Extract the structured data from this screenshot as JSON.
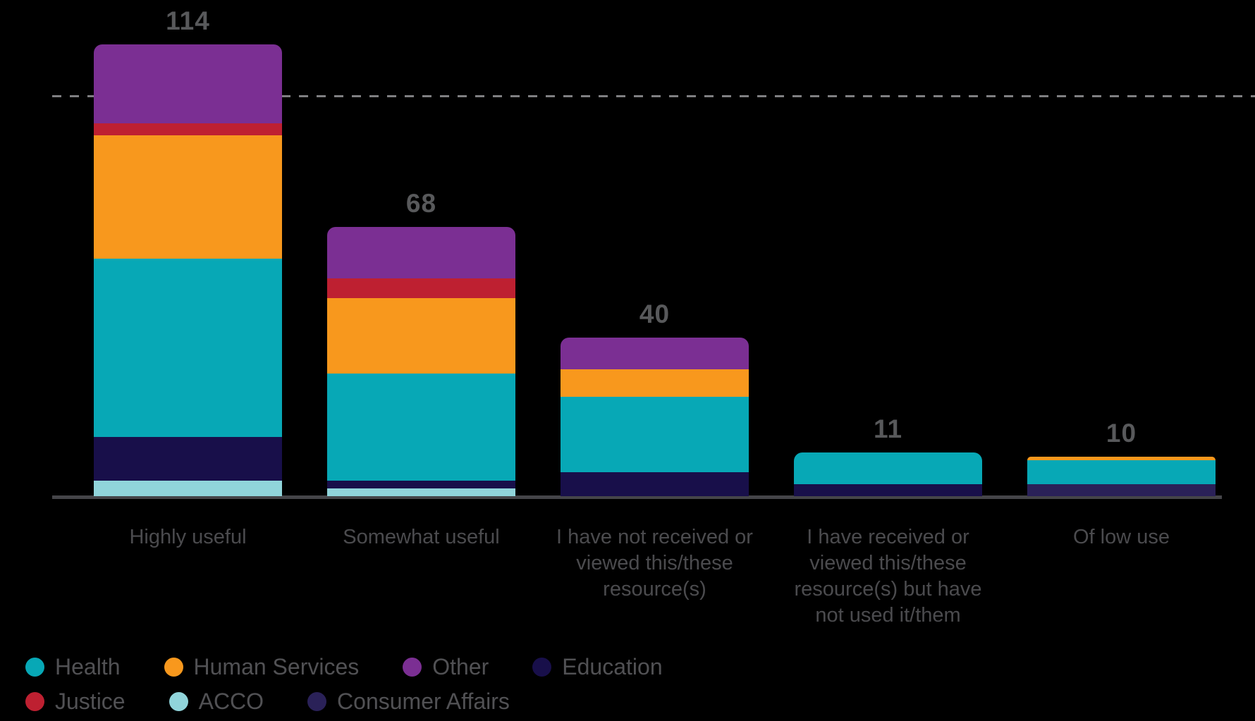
{
  "colors": {
    "background": "#000000",
    "value_label": "#58595B",
    "axis_label": "#4B4B4E",
    "legend_text": "#515154",
    "axis_line": "#454549",
    "dashed_line": "#7F7F82"
  },
  "chart_data": {
    "type": "bar",
    "stacked": true,
    "title": "",
    "xlabel": "",
    "ylabel": "",
    "grid": "off",
    "legend_position": "bottom-left",
    "categories": [
      {
        "label": "Highly useful",
        "lines": [
          "Highly useful"
        ]
      },
      {
        "label": "Somewhat useful",
        "lines": [
          "Somewhat useful"
        ]
      },
      {
        "label": "I have not received or viewed this/these resource(s)",
        "lines": [
          "I have not received or",
          "viewed this/these",
          "resource(s)"
        ]
      },
      {
        "label": "I have received or viewed this/these resource(s) but have not used it/them",
        "lines": [
          "I have received or",
          "viewed this/these",
          "resource(s) but have",
          "not used it/them"
        ]
      },
      {
        "label": "Of low use",
        "lines": [
          "Of low use"
        ]
      }
    ],
    "totals": [
      114,
      68,
      40,
      11,
      10
    ],
    "series": [
      {
        "name": "Health",
        "color": "#07A8B6",
        "values": [
          45,
          27,
          19,
          8,
          6
        ]
      },
      {
        "name": "Human Services",
        "color": "#F8981D",
        "values": [
          31,
          19,
          7,
          0,
          1
        ]
      },
      {
        "name": "Other",
        "color": "#7B2F93",
        "values": [
          20,
          13,
          8,
          0,
          0
        ]
      },
      {
        "name": "Education",
        "color": "#180F4A",
        "values": [
          11,
          2,
          6,
          3,
          0
        ]
      },
      {
        "name": "Justice",
        "color": "#BE2031",
        "values": [
          3,
          5,
          0,
          0,
          0
        ]
      },
      {
        "name": "ACCO",
        "color": "#90D4DA",
        "values": [
          4,
          2,
          0,
          0,
          0
        ]
      },
      {
        "name": "Consumer Affairs",
        "color": "#2A2158",
        "values": [
          0,
          0,
          0,
          0,
          3
        ]
      }
    ],
    "stack_order_bottom_to_top": [
      "Consumer Affairs",
      "ACCO",
      "Education",
      "Health",
      "Human Services",
      "Justice",
      "Other"
    ],
    "reference_line": {
      "value": 101,
      "style": "dashed"
    }
  },
  "legend": {
    "rows": [
      [
        "Health",
        "Human Services",
        "Other",
        "Education"
      ],
      [
        "Justice",
        "ACCO",
        "Consumer Affairs"
      ]
    ]
  }
}
